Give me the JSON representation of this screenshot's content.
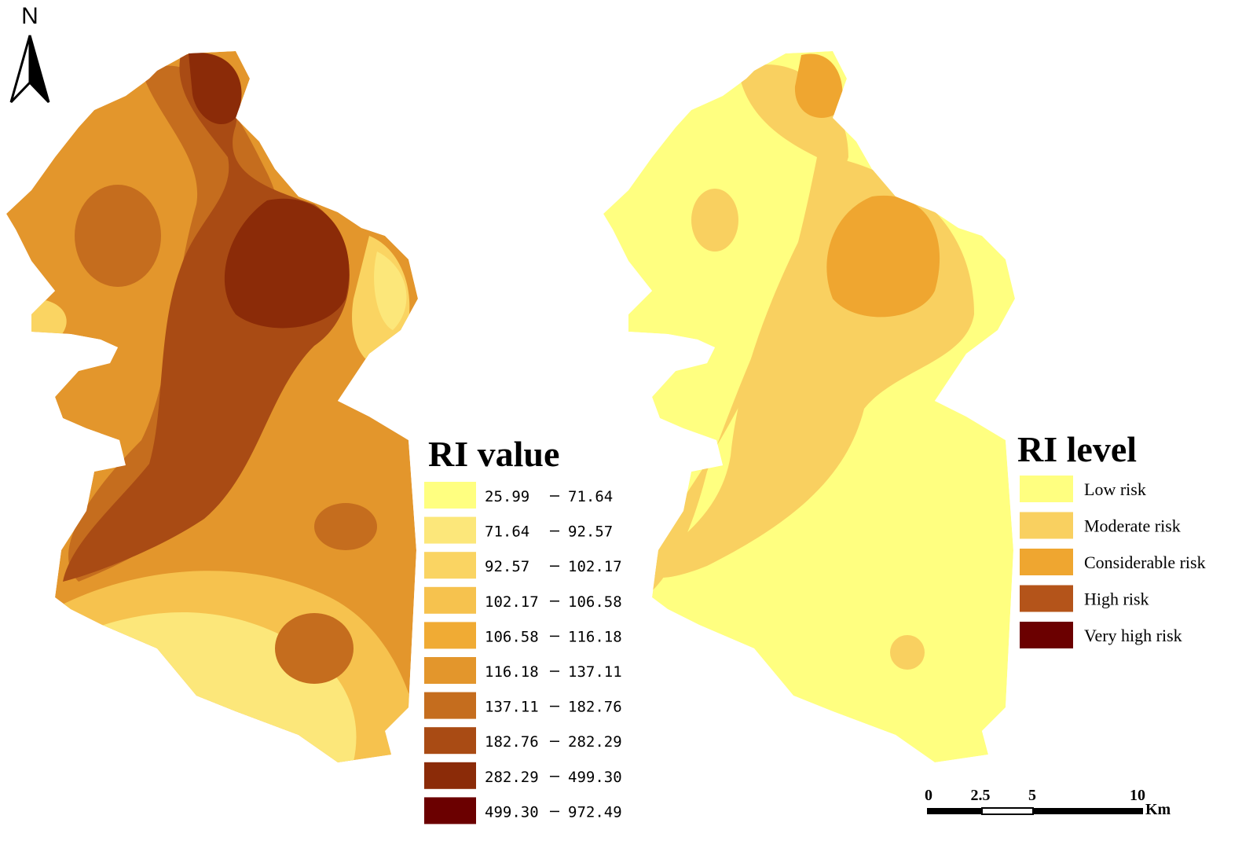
{
  "north_arrow": {
    "label": "N"
  },
  "left_legend": {
    "title": "RI value",
    "items": [
      {
        "from": "25.99",
        "to": "71.64",
        "color": "#ffff80"
      },
      {
        "from": "71.64",
        "to": "92.57",
        "color": "#fce77a"
      },
      {
        "from": "92.57",
        "to": "102.17",
        "color": "#fad462"
      },
      {
        "from": "102.17",
        "to": "106.58",
        "color": "#f6c24e"
      },
      {
        "from": "106.58",
        "to": "116.18",
        "color": "#f0ab34"
      },
      {
        "from": "116.18",
        "to": "137.11",
        "color": "#e3962c"
      },
      {
        "from": "137.11",
        "to": "182.76",
        "color": "#c56d1e"
      },
      {
        "from": "182.76",
        "to": "282.29",
        "color": "#a94b14"
      },
      {
        "from": "282.29",
        "to": "499.30",
        "color": "#8b2b08"
      },
      {
        "from": "499.30",
        "to": "972.49",
        "color": "#6b0000"
      }
    ]
  },
  "right_legend": {
    "title": "RI level",
    "items": [
      {
        "label": "Low risk",
        "color": "#ffff80"
      },
      {
        "label": "Moderate risk",
        "color": "#f9d060"
      },
      {
        "label": "Considerable risk",
        "color": "#efa630"
      },
      {
        "label": "High risk",
        "color": "#b4541a"
      },
      {
        "label": "Very high risk",
        "color": "#6b0000"
      }
    ]
  },
  "scale_bar": {
    "labels": [
      "0",
      "2.5",
      "5",
      "10"
    ],
    "unit": "Km"
  }
}
